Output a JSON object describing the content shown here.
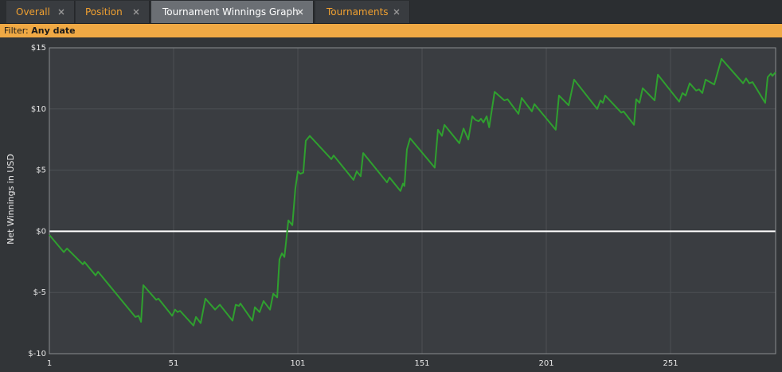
{
  "tabs": [
    "Overall",
    "Position",
    "Tournament Winnings Graph",
    "Tournaments"
  ],
  "filter": {
    "label": "Filter:",
    "value": "Any date"
  },
  "chart_data": {
    "type": "line",
    "ylabel": "Net Winnings in USD",
    "x": [
      1,
      6.8,
      8.1,
      14.5,
      15.1,
      19.6,
      20.6,
      35.6,
      36.9,
      37.9,
      38.8,
      44,
      44.9,
      50.4,
      51.6,
      52.6,
      53.6,
      59,
      60,
      61.9,
      63.8,
      67.7,
      69.6,
      74.7,
      76,
      77.3,
      77.9,
      82.7,
      83.7,
      85.6,
      87.2,
      89.8,
      91.1,
      92.7,
      93.6,
      94.6,
      95.6,
      97.2,
      98.8,
      100,
      101,
      102,
      103.2,
      104.2,
      105.8,
      114.5,
      115.4,
      123.4,
      124.7,
      126.3,
      127.3,
      136.9,
      137.9,
      142.3,
      143.3,
      143.9,
      144.9,
      146.2,
      156.1,
      157.4,
      159,
      160,
      166,
      167.7,
      169.6,
      171.2,
      172.5,
      173.8,
      174.7,
      175.7,
      177,
      178,
      180.2,
      184.1,
      185.4,
      189.8,
      191.1,
      195.2,
      196.2,
      204.8,
      206.1,
      210,
      212.2,
      221.5,
      222.8,
      223.8,
      224.7,
      231.2,
      232.1,
      236.3,
      237.2,
      238.5,
      239.8,
      244.6,
      245.9,
      254.5,
      255.8,
      257.1,
      258.7,
      261.3,
      262.5,
      263.8,
      265.1,
      268.6,
      271.5,
      280.2,
      281.4,
      282.7,
      284,
      289.1,
      290.1,
      291.4,
      292,
      293.3
    ],
    "series": [
      {
        "color": "#2fa02f",
        "values": [
          -0.3,
          -1.7,
          -1.4,
          -2.7,
          -2.5,
          -3.6,
          -3.3,
          -7.0,
          -6.9,
          -7.4,
          -4.4,
          -5.6,
          -5.5,
          -6.9,
          -6.4,
          -6.6,
          -6.5,
          -7.7,
          -7.0,
          -7.5,
          -5.5,
          -6.4,
          -6.0,
          -7.3,
          -6.0,
          -6.1,
          -5.9,
          -7.3,
          -6.2,
          -6.6,
          -5.7,
          -6.4,
          -5.1,
          -5.4,
          -2.3,
          -1.8,
          -2.1,
          0.9,
          0.5,
          3.5,
          4.9,
          4.7,
          4.8,
          7.4,
          7.8,
          5.9,
          6.2,
          4.2,
          4.9,
          4.5,
          6.4,
          4.0,
          4.4,
          3.3,
          3.9,
          3.7,
          6.7,
          7.6,
          5.2,
          8.3,
          7.8,
          8.7,
          7.2,
          8.4,
          7.5,
          9.4,
          9.1,
          9.0,
          9.2,
          8.9,
          9.4,
          8.5,
          11.4,
          10.7,
          10.8,
          9.6,
          10.9,
          9.8,
          10.4,
          8.3,
          11.1,
          10.3,
          12.4,
          10.0,
          10.7,
          10.5,
          11.1,
          9.7,
          9.8,
          8.7,
          10.8,
          10.5,
          11.7,
          10.7,
          12.8,
          10.6,
          11.3,
          11.1,
          12.1,
          11.5,
          11.6,
          11.3,
          12.4,
          12.0,
          14.1,
          12.1,
          12.5,
          12.1,
          12.2,
          10.5,
          12.6,
          12.9,
          12.7,
          13.0
        ]
      }
    ],
    "xlim": [
      1,
      293.3
    ],
    "xticks": [
      1,
      51,
      101,
      151,
      201,
      251
    ],
    "ylim": [
      -10,
      15
    ],
    "yticks": [
      {
        "value": -10,
        "label": "$-10"
      },
      {
        "value": -5,
        "label": "$-5"
      },
      {
        "value": 0,
        "label": "$0"
      },
      {
        "value": 5,
        "label": "$5"
      },
      {
        "value": 10,
        "label": "$10"
      },
      {
        "value": 15,
        "label": "$15"
      }
    ],
    "grid": true,
    "zero_line_color": "#ffffff"
  }
}
